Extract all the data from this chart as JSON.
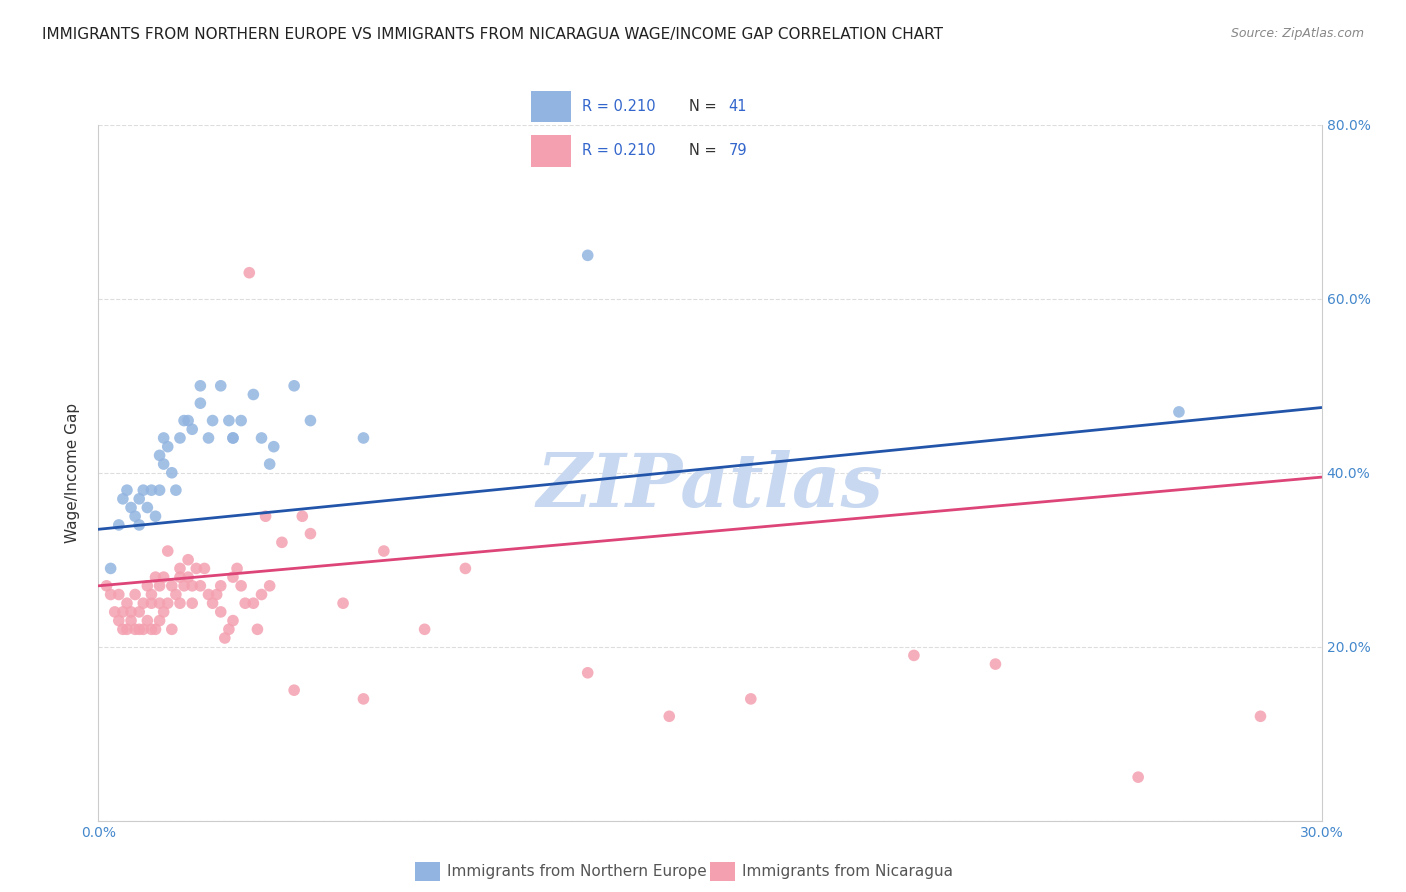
{
  "title": "IMMIGRANTS FROM NORTHERN EUROPE VS IMMIGRANTS FROM NICARAGUA WAGE/INCOME GAP CORRELATION CHART",
  "source": "Source: ZipAtlas.com",
  "ylabel": "Wage/Income Gap",
  "xlim": [
    0.0,
    0.3
  ],
  "ylim": [
    0.0,
    0.8
  ],
  "xticks": [
    0.0,
    0.05,
    0.1,
    0.15,
    0.2,
    0.25,
    0.3
  ],
  "yticks": [
    0.0,
    0.2,
    0.4,
    0.6,
    0.8
  ],
  "yticklabels_right": [
    "",
    "20.0%",
    "40.0%",
    "60.0%",
    "80.0%"
  ],
  "blue_color": "#92B4E0",
  "pink_color": "#F4A0B0",
  "blue_line_color": "#2255AA",
  "pink_line_color": "#DD4477",
  "watermark": "ZIPatlas",
  "watermark_color": "#C8D8F0",
  "background_color": "#FFFFFF",
  "grid_color": "#DDDDDD",
  "tick_color": "#4488CC",
  "tick_fontsize": 10,
  "label_fontsize": 11,
  "title_fontsize": 11,
  "marker_size": 70,
  "blue_line_x": [
    0.0,
    0.3
  ],
  "blue_line_y": [
    0.335,
    0.475
  ],
  "pink_line_x": [
    0.0,
    0.3
  ],
  "pink_line_y": [
    0.27,
    0.395
  ],
  "blue_scatter_x": [
    0.003,
    0.005,
    0.006,
    0.007,
    0.008,
    0.009,
    0.01,
    0.01,
    0.011,
    0.012,
    0.013,
    0.014,
    0.015,
    0.015,
    0.016,
    0.016,
    0.017,
    0.018,
    0.019,
    0.02,
    0.021,
    0.022,
    0.023,
    0.025,
    0.025,
    0.027,
    0.028,
    0.03,
    0.032,
    0.033,
    0.033,
    0.035,
    0.038,
    0.04,
    0.042,
    0.043,
    0.048,
    0.052,
    0.065,
    0.12,
    0.265
  ],
  "blue_scatter_y": [
    0.29,
    0.34,
    0.37,
    0.38,
    0.36,
    0.35,
    0.37,
    0.34,
    0.38,
    0.36,
    0.38,
    0.35,
    0.38,
    0.42,
    0.44,
    0.41,
    0.43,
    0.4,
    0.38,
    0.44,
    0.46,
    0.46,
    0.45,
    0.5,
    0.48,
    0.44,
    0.46,
    0.5,
    0.46,
    0.44,
    0.44,
    0.46,
    0.49,
    0.44,
    0.41,
    0.43,
    0.5,
    0.46,
    0.44,
    0.65,
    0.47
  ],
  "pink_scatter_x": [
    0.002,
    0.003,
    0.004,
    0.005,
    0.005,
    0.006,
    0.006,
    0.007,
    0.007,
    0.008,
    0.008,
    0.009,
    0.009,
    0.01,
    0.01,
    0.011,
    0.011,
    0.012,
    0.012,
    0.013,
    0.013,
    0.013,
    0.014,
    0.014,
    0.015,
    0.015,
    0.015,
    0.016,
    0.016,
    0.017,
    0.017,
    0.018,
    0.018,
    0.019,
    0.02,
    0.02,
    0.02,
    0.021,
    0.022,
    0.022,
    0.023,
    0.023,
    0.024,
    0.025,
    0.026,
    0.027,
    0.028,
    0.029,
    0.03,
    0.03,
    0.031,
    0.032,
    0.033,
    0.033,
    0.034,
    0.035,
    0.036,
    0.037,
    0.038,
    0.039,
    0.04,
    0.041,
    0.042,
    0.045,
    0.048,
    0.05,
    0.052,
    0.06,
    0.065,
    0.07,
    0.08,
    0.09,
    0.12,
    0.14,
    0.16,
    0.2,
    0.22,
    0.255,
    0.285
  ],
  "pink_scatter_y": [
    0.27,
    0.26,
    0.24,
    0.26,
    0.23,
    0.22,
    0.24,
    0.22,
    0.25,
    0.23,
    0.24,
    0.22,
    0.26,
    0.22,
    0.24,
    0.22,
    0.25,
    0.23,
    0.27,
    0.25,
    0.22,
    0.26,
    0.22,
    0.28,
    0.23,
    0.25,
    0.27,
    0.24,
    0.28,
    0.31,
    0.25,
    0.22,
    0.27,
    0.26,
    0.25,
    0.28,
    0.29,
    0.27,
    0.28,
    0.3,
    0.25,
    0.27,
    0.29,
    0.27,
    0.29,
    0.26,
    0.25,
    0.26,
    0.24,
    0.27,
    0.21,
    0.22,
    0.23,
    0.28,
    0.29,
    0.27,
    0.25,
    0.63,
    0.25,
    0.22,
    0.26,
    0.35,
    0.27,
    0.32,
    0.15,
    0.35,
    0.33,
    0.25,
    0.14,
    0.31,
    0.22,
    0.29,
    0.17,
    0.12,
    0.14,
    0.19,
    0.18,
    0.05,
    0.12
  ]
}
